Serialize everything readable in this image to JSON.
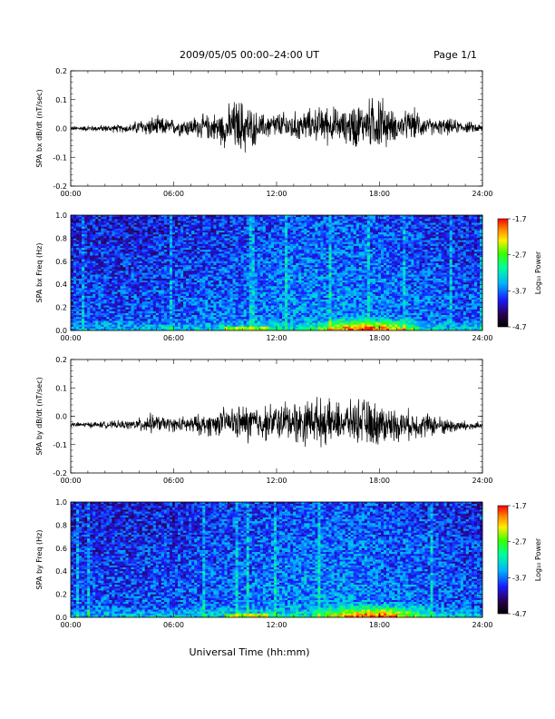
{
  "header": {
    "title": "2009/05/05  00:00–24:00 UT",
    "page_label": "Page 1/1"
  },
  "footer": {
    "xlabel": "Universal Time (hh:mm)"
  },
  "chart_data": [
    {
      "id": "bx-dbdt",
      "type": "line",
      "ylabel": "SPA bx dB/dt (nT/sec)",
      "x_ticks": [
        "00:00",
        "06:00",
        "12:00",
        "18:00",
        "24:00"
      ],
      "y_ticks": [
        "0.2",
        "0.1",
        "0.0",
        "-0.1",
        "-0.2"
      ],
      "xlim_hours": [
        0,
        24
      ],
      "ylim": [
        -0.2,
        0.2
      ],
      "color": "#000000",
      "series": [
        {
          "x_hours": [
            0,
            2,
            3.5,
            4,
            5,
            6,
            7,
            8,
            9,
            9.5,
            10,
            10.5,
            11,
            12,
            13,
            14,
            15,
            16,
            16.5,
            17,
            17.5,
            18,
            18.5,
            19,
            20,
            21,
            22,
            23,
            24
          ],
          "upper": [
            0.01,
            0.015,
            0.02,
            0.04,
            0.05,
            0.04,
            0.05,
            0.06,
            0.08,
            0.12,
            0.13,
            0.09,
            0.06,
            0.07,
            0.07,
            0.08,
            0.1,
            0.07,
            0.12,
            0.1,
            0.13,
            0.16,
            0.09,
            0.06,
            0.08,
            0.04,
            0.04,
            0.03,
            0.02
          ],
          "lower": [
            -0.01,
            -0.015,
            -0.02,
            -0.03,
            -0.04,
            -0.03,
            -0.04,
            -0.05,
            -0.08,
            -0.1,
            -0.12,
            -0.09,
            -0.05,
            -0.05,
            -0.06,
            -0.05,
            -0.07,
            -0.06,
            -0.1,
            -0.07,
            -0.09,
            -0.12,
            -0.07,
            -0.05,
            -0.05,
            -0.03,
            -0.03,
            -0.02,
            -0.02
          ]
        }
      ]
    },
    {
      "id": "bx-freq",
      "type": "heatmap",
      "ylabel": "SPA bx Freq (Hz)",
      "x_ticks": [
        "00:00",
        "06:00",
        "12:00",
        "18:00",
        "24:00"
      ],
      "y_ticks": [
        "1.0",
        "0.8",
        "0.6",
        "0.4",
        "0.2",
        "0.0"
      ],
      "xlim_hours": [
        0,
        24
      ],
      "ylim": [
        0,
        1.0
      ],
      "colorbar": {
        "label": "Log₁₀ Power",
        "ticks": [
          "-1.7",
          "-2.7",
          "-3.7",
          "-4.7"
        ],
        "range": [
          -4.7,
          -1.7
        ],
        "scale": "log10"
      },
      "features": [
        {
          "description": "broadband background",
          "freq_range": [
            0.0,
            1.0
          ],
          "log_power": -4.0
        },
        {
          "description": "enhanced low-frequency band",
          "hours": [
            15,
            19.5
          ],
          "freq_range": [
            0.0,
            0.12
          ],
          "log_power": -2.6
        }
      ]
    },
    {
      "id": "by-dbdt",
      "type": "line",
      "ylabel": "SPA by dB/dt (nT/sec)",
      "x_ticks": [
        "00:00",
        "06:00",
        "12:00",
        "18:00",
        "24:00"
      ],
      "y_ticks": [
        "0.2",
        "0.1",
        "0.0",
        "-0.1",
        "-0.2"
      ],
      "xlim_hours": [
        0,
        24
      ],
      "ylim": [
        -0.2,
        0.2
      ],
      "color": "#000000",
      "series": [
        {
          "x_hours": [
            0,
            2,
            3.5,
            4,
            4.5,
            5,
            6,
            7,
            8,
            9,
            10,
            10.5,
            11,
            12,
            13,
            13.5,
            14,
            15,
            16,
            17,
            17.5,
            18,
            18.5,
            19,
            20,
            21,
            22,
            23,
            24
          ],
          "upper": [
            -0.02,
            -0.015,
            -0.01,
            0.0,
            0.02,
            0.01,
            0.0,
            0.01,
            0.02,
            0.04,
            0.05,
            0.07,
            0.05,
            0.06,
            0.08,
            0.07,
            0.09,
            0.07,
            0.06,
            0.08,
            0.07,
            0.07,
            0.05,
            0.04,
            0.03,
            0.02,
            0.0,
            -0.01,
            -0.02
          ],
          "lower": [
            -0.04,
            -0.045,
            -0.05,
            -0.06,
            -0.07,
            -0.06,
            -0.06,
            -0.07,
            -0.08,
            -0.08,
            -0.1,
            -0.12,
            -0.1,
            -0.1,
            -0.11,
            -0.12,
            -0.11,
            -0.12,
            -0.1,
            -0.11,
            -0.13,
            -0.12,
            -0.11,
            -0.1,
            -0.09,
            -0.08,
            -0.07,
            -0.06,
            -0.05
          ]
        }
      ]
    },
    {
      "id": "by-freq",
      "type": "heatmap",
      "ylabel": "SPA by Freq (Hz)",
      "x_ticks": [
        "00:00",
        "06:00",
        "12:00",
        "18:00",
        "24:00"
      ],
      "y_ticks": [
        "1.0",
        "0.8",
        "0.6",
        "0.4",
        "0.2",
        "0.0"
      ],
      "xlim_hours": [
        0,
        24
      ],
      "ylim": [
        0,
        1.0
      ],
      "colorbar": {
        "label": "Log₁₀ Power",
        "ticks": [
          "-1.7",
          "-2.7",
          "-3.7",
          "-4.7"
        ],
        "range": [
          -4.7,
          -1.7
        ],
        "scale": "log10"
      },
      "features": [
        {
          "description": "broadband background",
          "freq_range": [
            0.0,
            1.0
          ],
          "log_power": -4.0
        },
        {
          "description": "enhanced low-frequency band",
          "hours": [
            15,
            20
          ],
          "freq_range": [
            0.0,
            0.13
          ],
          "log_power": -2.5
        }
      ]
    }
  ]
}
